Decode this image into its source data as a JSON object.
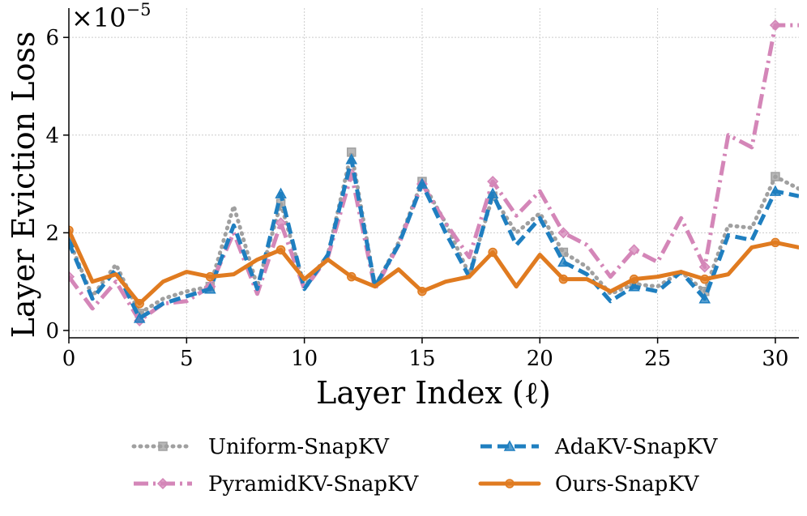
{
  "chart_data": {
    "type": "line",
    "xlabel": "Layer Index (ℓ)",
    "ylabel": "Layer Eviction Loss",
    "y_scale_base": "×10",
    "y_scale_exponent": "−5",
    "xlim": [
      0,
      31
    ],
    "ylim": [
      -0.15,
      6.6
    ],
    "x_ticks": [
      0,
      5,
      10,
      15,
      20,
      25,
      30
    ],
    "y_ticks": [
      0,
      2,
      4,
      6
    ],
    "grid": true,
    "legend_position": "bottom",
    "x": [
      0,
      1,
      2,
      3,
      4,
      5,
      6,
      7,
      8,
      9,
      10,
      11,
      12,
      13,
      14,
      15,
      16,
      17,
      18,
      19,
      20,
      21,
      22,
      23,
      24,
      25,
      26,
      27,
      28,
      29,
      30,
      31
    ],
    "series": [
      {
        "name": "Uniform-SnapKV",
        "color": "#a0a0a0",
        "marker": "square",
        "linestyle": "dotted",
        "values": [
          1.85,
          0.7,
          1.35,
          0.35,
          0.65,
          0.8,
          0.9,
          2.55,
          0.9,
          2.6,
          0.9,
          1.55,
          3.65,
          0.9,
          1.8,
          3.05,
          2.2,
          1.15,
          2.75,
          2.0,
          2.4,
          1.6,
          1.3,
          0.75,
          0.95,
          0.9,
          1.2,
          0.8,
          2.15,
          2.1,
          3.15,
          2.9
        ]
      },
      {
        "name": "PyramidKV-SnapKV",
        "color": "#d486b8",
        "marker": "diamond",
        "linestyle": "dashdot",
        "values": [
          1.1,
          0.45,
          1.0,
          0.2,
          0.55,
          0.6,
          0.9,
          2.0,
          0.75,
          2.2,
          0.85,
          1.5,
          3.2,
          0.85,
          1.75,
          3.0,
          2.2,
          1.5,
          3.05,
          2.35,
          2.85,
          2.0,
          1.75,
          1.1,
          1.65,
          1.4,
          2.3,
          1.3,
          4.0,
          3.75,
          6.25,
          6.25
        ]
      },
      {
        "name": "AdaKV-SnapKV",
        "color": "#1f7fc0",
        "marker": "triangle",
        "linestyle": "dashed",
        "values": [
          1.8,
          0.65,
          1.25,
          0.25,
          0.55,
          0.7,
          0.85,
          2.15,
          0.85,
          2.8,
          0.85,
          1.55,
          3.5,
          0.9,
          1.75,
          3.0,
          2.0,
          1.1,
          2.8,
          1.75,
          2.3,
          1.4,
          1.15,
          0.6,
          0.9,
          0.8,
          1.2,
          0.65,
          1.95,
          1.85,
          2.85,
          2.75
        ]
      },
      {
        "name": "Ours-SnapKV",
        "color": "#e07b20",
        "marker": "circle",
        "linestyle": "solid",
        "values": [
          2.05,
          1.0,
          1.15,
          0.55,
          1.0,
          1.2,
          1.1,
          1.15,
          1.45,
          1.65,
          1.05,
          1.45,
          1.1,
          0.9,
          1.25,
          0.8,
          1.0,
          1.1,
          1.6,
          0.9,
          1.55,
          1.05,
          1.05,
          0.8,
          1.05,
          1.1,
          1.2,
          1.05,
          1.15,
          1.7,
          1.8,
          1.7
        ]
      }
    ]
  }
}
